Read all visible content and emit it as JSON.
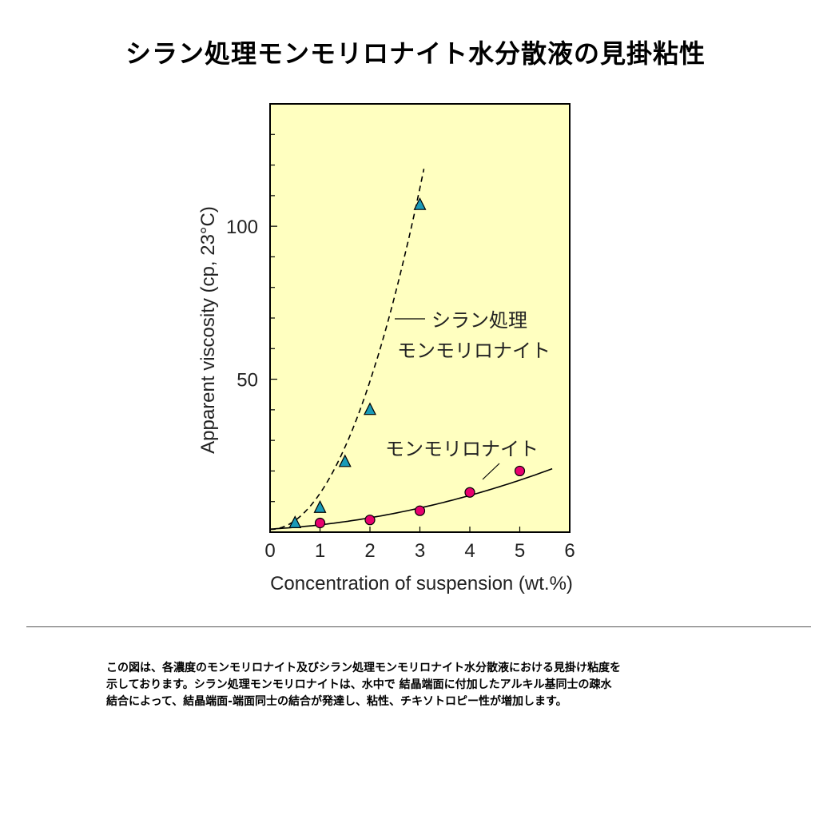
{
  "title": "シラン処理モンモリロナイト水分散液の見掛粘性",
  "chart_data": {
    "type": "scatter",
    "xlabel": "Concentration of suspension (wt.%)",
    "ylabel": "Apparent viscosity (cp, 23°C)",
    "xlim": [
      0,
      6
    ],
    "ylim": [
      0,
      140
    ],
    "x_ticks": [
      "0",
      "1",
      "2",
      "3",
      "4",
      "5",
      "6"
    ],
    "y_ticks": [
      "50",
      "100"
    ],
    "background": "#ffffc0",
    "series": [
      {
        "name": "シラン処理モンモリロナイト",
        "label_lines": [
          "シラン処理",
          "モンモリロナイト"
        ],
        "marker": "triangle",
        "color": "#1a9bb8",
        "line_style": "dashed",
        "x": [
          0.5,
          1.0,
          1.5,
          2.0,
          3.0
        ],
        "y": [
          3,
          8,
          23,
          40,
          107
        ]
      },
      {
        "name": "モンモリロナイト",
        "label_lines": [
          "モンモリロナイト"
        ],
        "marker": "circle",
        "color": "#e8006e",
        "line_style": "solid",
        "x": [
          1.0,
          2.0,
          3.0,
          4.0,
          5.0
        ],
        "y": [
          3,
          4,
          7,
          13,
          20
        ]
      }
    ]
  },
  "caption": [
    "この図は、各濃度のモンモリロナイト及びシラン処理モンモリロナイト水分散液における見掛け粘度を",
    "示しております。シラン処理モンモリロナイトは、水中で 結晶端面に付加したアルキル基同士の疎水",
    "結合によって、結晶端面-端面同士の結合が発達し、粘性、チキソトロピー性が増加します。"
  ]
}
